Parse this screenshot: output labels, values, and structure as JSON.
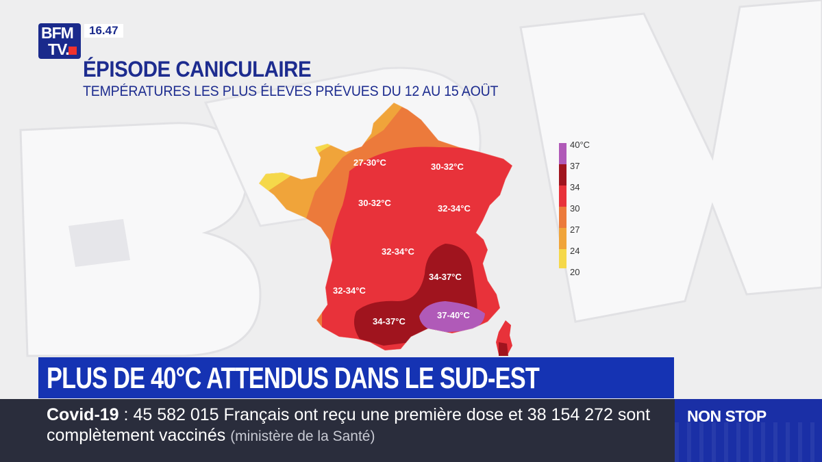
{
  "channel": {
    "logo_line1": "BFM",
    "logo_line2": "TV.",
    "time": "16.47"
  },
  "graphic": {
    "title": "ÉPISODE CANICULAIRE",
    "subtitle": "TEMPÉRATURES LES PLUS ÉLEVES PRÉVUES DU 12 AU 15 AOÛT"
  },
  "map": {
    "zones": [
      {
        "label": "27-30°C"
      },
      {
        "label": "30-32°C"
      },
      {
        "label": "30-32°C"
      },
      {
        "label": "32-34°C"
      },
      {
        "label": "32-34°C"
      },
      {
        "label": "32-34°C"
      },
      {
        "label": "34-37°C"
      },
      {
        "label": "34-37°C"
      },
      {
        "label": "37-40°C"
      }
    ],
    "colors": {
      "yellow": "#f5d84a",
      "orange_light": "#f0a43a",
      "orange": "#ec7a3b",
      "red": "#e8323a",
      "dark_red": "#a0141e",
      "purple": "#b05ab8"
    }
  },
  "legend": {
    "items": [
      {
        "label": "40°C",
        "color": "#b05ab8"
      },
      {
        "label": "37",
        "color": "#a0141e"
      },
      {
        "label": "34",
        "color": "#e8323a"
      },
      {
        "label": "30",
        "color": "#ec7a3b"
      },
      {
        "label": "27",
        "color": "#f0a43a"
      },
      {
        "label": "24",
        "color": "#f5d84a"
      },
      {
        "label": "20",
        "color": "#f5d84a"
      }
    ]
  },
  "headline": {
    "text": "PLUS DE 40°C ATTENDUS DANS LE SUD-EST"
  },
  "ticker": {
    "topic": "Covid-19",
    "separator": " : ",
    "text": "45 582 015 Français ont reçu une première dose et 38 154 272 sont complètement vaccinés",
    "source": "(ministère de la Santé)"
  },
  "nonstop": {
    "label": "NON STOP"
  }
}
